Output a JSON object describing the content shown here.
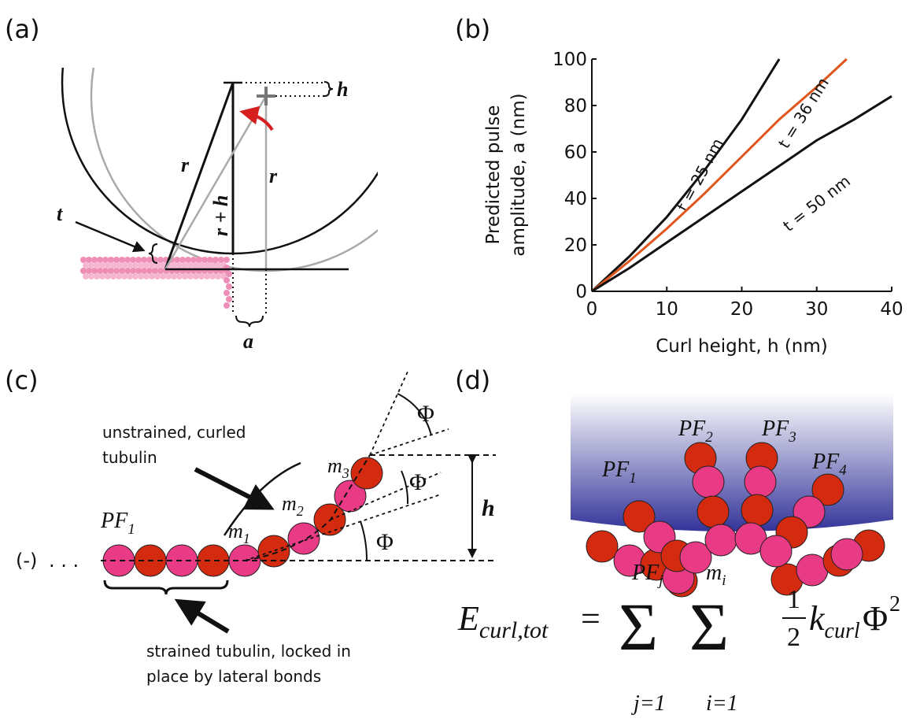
{
  "panels": {
    "a": {
      "label": "(a)",
      "h": "h",
      "r_left": "r",
      "r_plus_h": "r + h",
      "r_right": "r",
      "t": "t",
      "a": "a"
    },
    "b": {
      "label": "(b)"
    },
    "c": {
      "label": "(c)",
      "unstrained_line1": "unstrained, curled",
      "unstrained_line2": "tubulin",
      "pf": {
        "main": "PF",
        "sub": "1"
      },
      "m1": {
        "main": "m",
        "sub": "1"
      },
      "m2": {
        "main": "m",
        "sub": "2"
      },
      "m3": {
        "main": "m",
        "sub": "3"
      },
      "phi1": "Φ",
      "phi2": "Φ",
      "phi3": "Φ",
      "h": "h",
      "minus_end": "(-)",
      "dots": ". . .",
      "strained_line1": "strained tubulin, locked in",
      "strained_line2": "place by lateral bonds"
    },
    "d": {
      "label": "(d)",
      "pf1": {
        "main": "PF",
        "sub": "1"
      },
      "pf2": {
        "main": "PF",
        "sub": "2"
      },
      "pf3": {
        "main": "PF",
        "sub": "3"
      },
      "pf4": {
        "main": "PF",
        "sub": "4"
      },
      "equation": {
        "lhs": "E",
        "lhs_sub": "curl,tot",
        "equals": "=",
        "sum1": "Σ",
        "sum1_upper": "PF",
        "sum1_upper_sub": "j",
        "sum1_lower": "j=1",
        "sum2": "Σ",
        "sum2_upper": "m",
        "sum2_upper_sub": "i",
        "sum2_lower": "i=1",
        "num": "1",
        "den": "2",
        "k": "k",
        "k_sub": "curl",
        "phi": "Φ",
        "power": "2"
      }
    }
  },
  "chart_data": {
    "type": "line",
    "x_label": "Curl height, h (nm)",
    "y_label": [
      "Predicted pulse",
      "amplitude, a (nm)"
    ],
    "xlim": [
      0,
      40
    ],
    "ylim": [
      0,
      100
    ],
    "xticks": [
      0,
      10,
      20,
      30,
      40
    ],
    "yticks": [
      0,
      20,
      40,
      60,
      80,
      100
    ],
    "series": [
      {
        "name": "t = 25 nm",
        "color": "#111111",
        "x": [
          0,
          5,
          10,
          15,
          20,
          25
        ],
        "values": [
          0,
          15,
          32,
          52,
          74,
          100
        ]
      },
      {
        "name": "t = 36 nm",
        "color": "#e0561c",
        "x": [
          0,
          5,
          10,
          15,
          20,
          25,
          30,
          34
        ],
        "values": [
          0,
          13,
          27,
          42,
          58,
          74,
          88,
          100
        ]
      },
      {
        "name": "t = 50 nm",
        "color": "#111111",
        "x": [
          0,
          5,
          10,
          15,
          20,
          25,
          30,
          35,
          40
        ],
        "values": [
          0,
          10,
          21,
          32,
          43,
          54,
          65,
          74,
          84
        ]
      }
    ]
  }
}
